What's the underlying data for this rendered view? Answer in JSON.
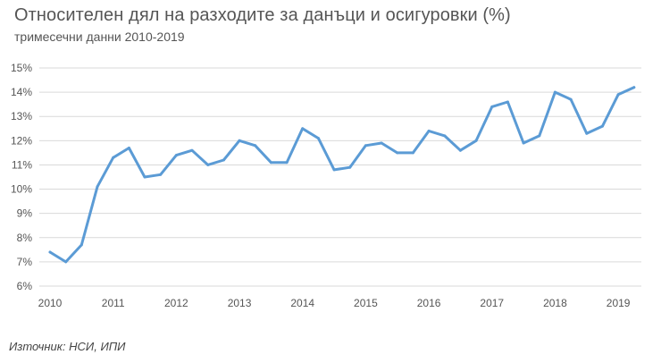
{
  "title": "Относителен дял на разходите за данъци и осигуровки (%)",
  "subtitle": "тримесечни данни 2010-2019",
  "source": "Източник: НСИ, ИПИ",
  "colors": {
    "line": "#5b9bd5",
    "grid": "#d9d9d9",
    "text": "#555555"
  },
  "chart_data": {
    "type": "line",
    "title": "Относителен дял на разходите за данъци и осигуровки (%)",
    "subtitle": "тримесечни данни 2010-2019",
    "xlabel": "",
    "ylabel": "",
    "grid": true,
    "ylim": [
      6,
      15
    ],
    "yticks": [
      "6%",
      "7%",
      "8%",
      "9%",
      "10%",
      "11%",
      "12%",
      "13%",
      "14%",
      "15%"
    ],
    "xticks": [
      "2010",
      "2011",
      "2012",
      "2013",
      "2014",
      "2015",
      "2016",
      "2017",
      "2018",
      "2019"
    ],
    "x": [
      "2010 Q1",
      "2010 Q2",
      "2010 Q3",
      "2010 Q4",
      "2011 Q1",
      "2011 Q2",
      "2011 Q3",
      "2011 Q4",
      "2012 Q1",
      "2012 Q2",
      "2012 Q3",
      "2012 Q4",
      "2013 Q1",
      "2013 Q2",
      "2013 Q3",
      "2013 Q4",
      "2014 Q1",
      "2014 Q2",
      "2014 Q3",
      "2014 Q4",
      "2015 Q1",
      "2015 Q2",
      "2015 Q3",
      "2015 Q4",
      "2016 Q1",
      "2016 Q2",
      "2016 Q3",
      "2016 Q4",
      "2017 Q1",
      "2017 Q2",
      "2017 Q3",
      "2017 Q4",
      "2018 Q1",
      "2018 Q2",
      "2018 Q3",
      "2018 Q4",
      "2019 Q1",
      "2019 Q2"
    ],
    "series": [
      {
        "values": [
          7.4,
          7.0,
          7.7,
          10.1,
          11.3,
          11.7,
          10.5,
          10.6,
          11.4,
          11.6,
          11.0,
          11.2,
          12.0,
          11.8,
          11.1,
          11.1,
          12.5,
          12.1,
          10.8,
          10.9,
          11.8,
          11.9,
          11.5,
          11.5,
          12.4,
          12.2,
          11.6,
          12.0,
          13.4,
          13.6,
          11.9,
          12.2,
          14.0,
          13.7,
          12.3,
          12.6,
          13.9,
          14.2
        ]
      }
    ]
  }
}
